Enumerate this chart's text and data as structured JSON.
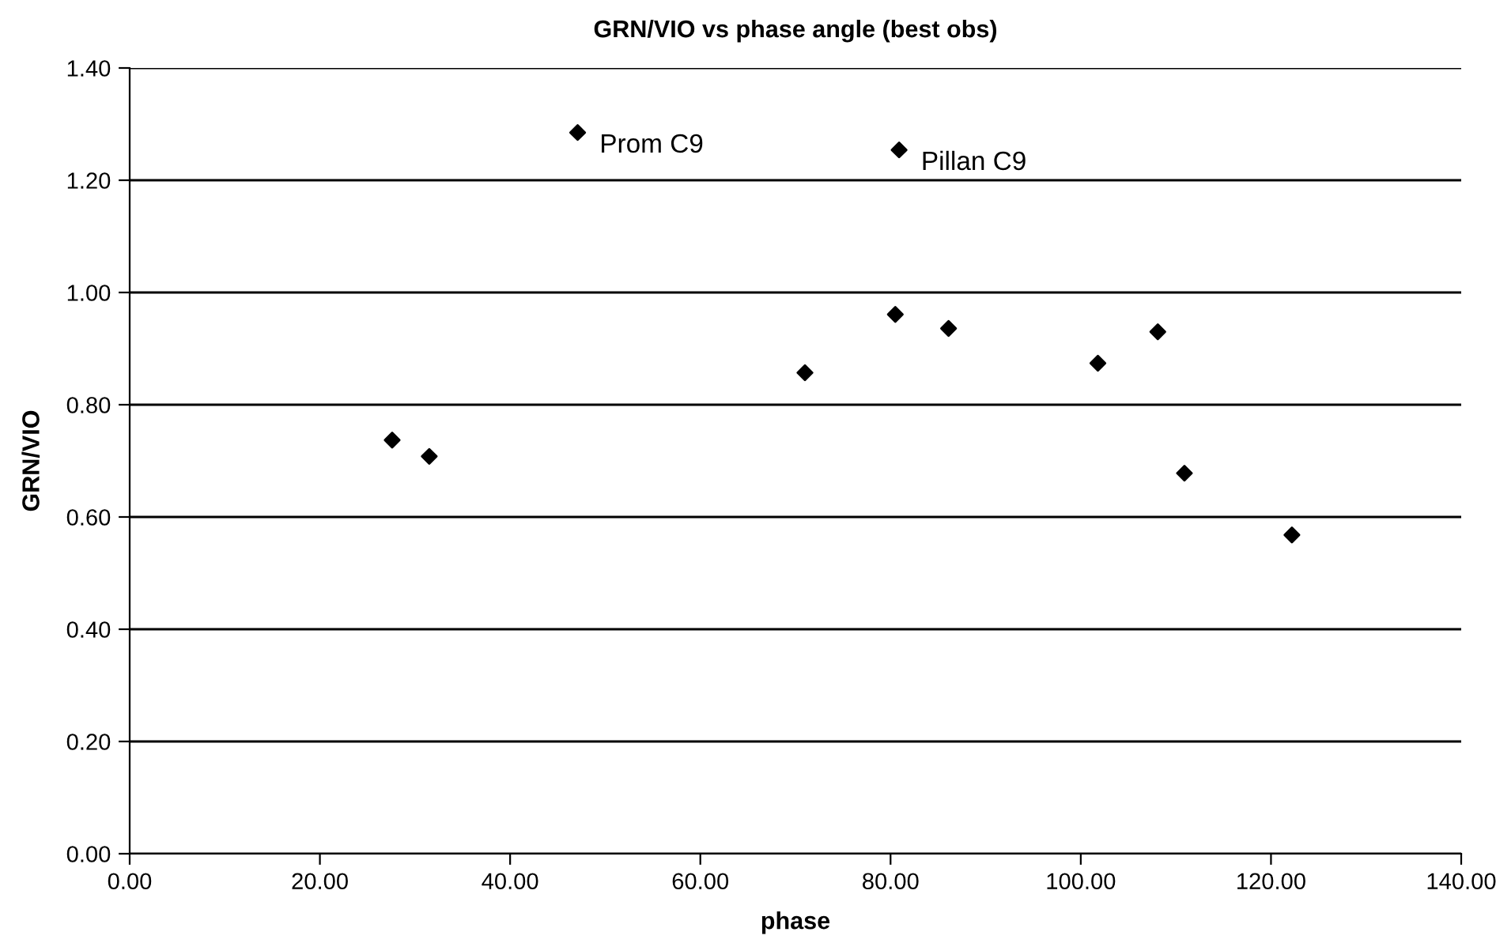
{
  "chart_data": {
    "type": "scatter",
    "title": "GRN/VIO vs phase angle (best obs)",
    "xlabel": "phase",
    "ylabel": "GRN/VIO",
    "x": [
      27.6,
      31.5,
      47.1,
      71.0,
      80.5,
      80.9,
      86.1,
      101.8,
      108.1,
      110.9,
      122.2
    ],
    "series": [
      {
        "color": "#000000",
        "values": [
          0.737,
          0.708,
          1.285,
          0.857,
          0.961,
          1.254,
          0.936,
          0.874,
          0.93,
          0.678,
          0.568
        ]
      }
    ],
    "annotations": [
      {
        "text": "Prom C9",
        "x": 47.1,
        "y": 1.285
      },
      {
        "text": "Pillan C9",
        "x": 80.9,
        "y": 1.254
      }
    ],
    "xlim": [
      0,
      140
    ],
    "ylim": [
      0,
      1.4
    ],
    "xticks": [
      {
        "value": 0,
        "label": "0.00"
      },
      {
        "value": 20,
        "label": "20.00"
      },
      {
        "value": 40,
        "label": "40.00"
      },
      {
        "value": 60,
        "label": "60.00"
      },
      {
        "value": 80,
        "label": "80.00"
      },
      {
        "value": 100,
        "label": "100.00"
      },
      {
        "value": 120,
        "label": "120.00"
      },
      {
        "value": 140,
        "label": "140.00"
      }
    ],
    "yticks": [
      {
        "value": 0,
        "label": "0.00"
      },
      {
        "value": 0.2,
        "label": "0.20"
      },
      {
        "value": 0.4,
        "label": "0.40"
      },
      {
        "value": 0.6,
        "label": "0.60"
      },
      {
        "value": 0.8,
        "label": "0.80"
      },
      {
        "value": 1.0,
        "label": "1.00"
      },
      {
        "value": 1.2,
        "label": "1.20"
      },
      {
        "value": 1.4,
        "label": "1.40"
      }
    ],
    "grid": "y",
    "marker": "diamond",
    "legend": false
  }
}
